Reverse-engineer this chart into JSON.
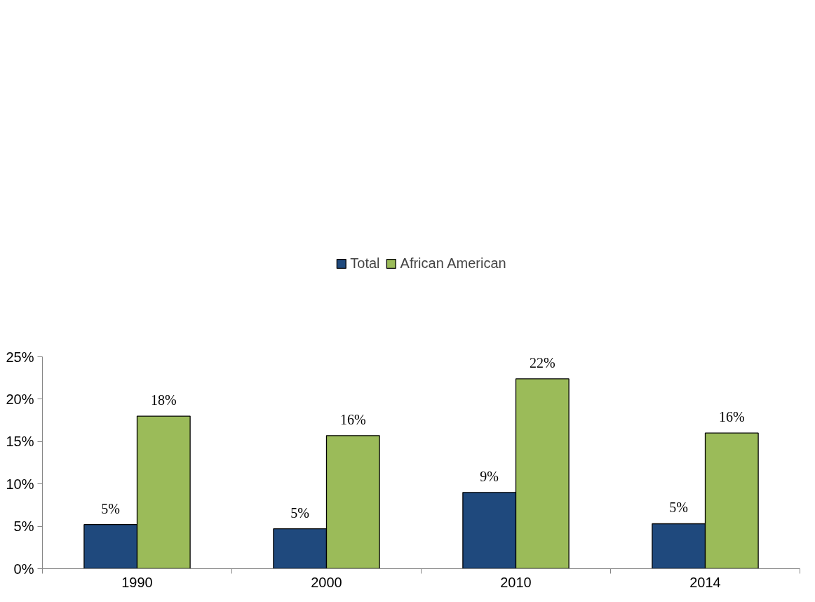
{
  "chart_data": {
    "type": "bar",
    "categories": [
      "1990",
      "2000",
      "2010",
      "2014"
    ],
    "series": [
      {
        "name": "Total",
        "color": "#1f497d",
        "values": [
          5.2,
          4.7,
          9.0,
          5.3
        ],
        "value_labels": [
          "5%",
          "5%",
          "9%",
          "5%"
        ]
      },
      {
        "name": "African American",
        "color": "#9bbb59",
        "values": [
          18.0,
          15.7,
          22.4,
          16.0
        ],
        "value_labels": [
          "18%",
          "16%",
          "22%",
          "16%"
        ]
      }
    ],
    "ylim": [
      0,
      25
    ],
    "yticks": [
      {
        "value": 0,
        "label": "0%"
      },
      {
        "value": 5,
        "label": "5%"
      },
      {
        "value": 10,
        "label": "10%"
      },
      {
        "value": 15,
        "label": "15%"
      },
      {
        "value": 20,
        "label": "20%"
      },
      {
        "value": 25,
        "label": "25%"
      }
    ],
    "grid": false,
    "legend": "top"
  }
}
